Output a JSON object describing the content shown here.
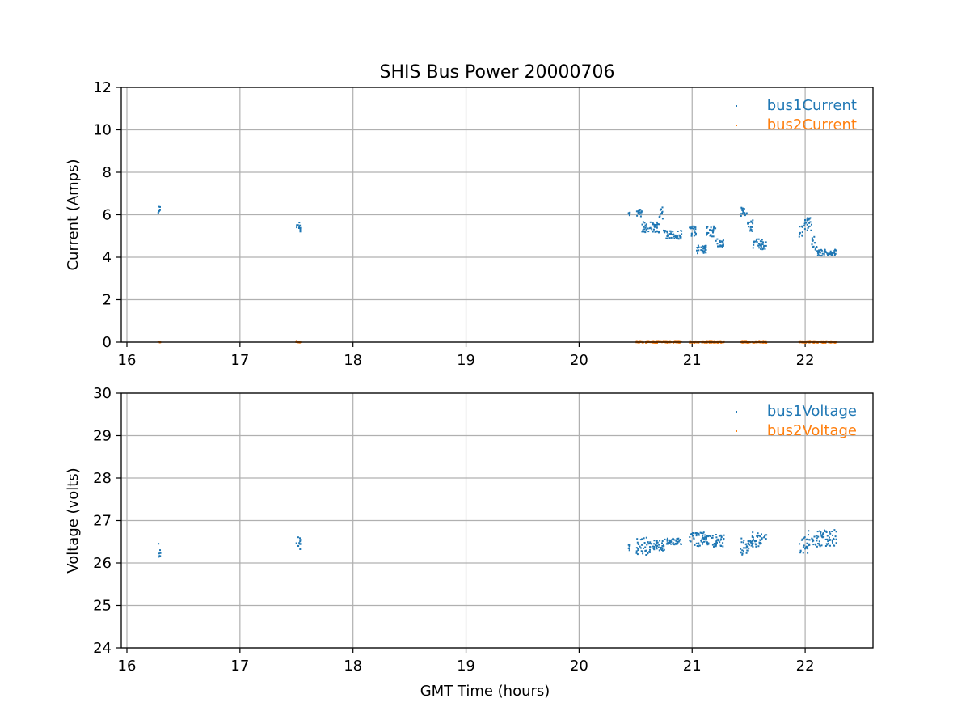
{
  "chart_data": [
    {
      "type": "scatter",
      "title": "SHIS Bus Power 20000706",
      "xlabel": "",
      "ylabel": "Current (Amps)",
      "xlim": [
        15.95,
        22.6
      ],
      "ylim": [
        0,
        12
      ],
      "xticks": [
        "16",
        "17",
        "18",
        "19",
        "20",
        "21",
        "22"
      ],
      "yticks": [
        "0",
        "2",
        "4",
        "6",
        "8",
        "10",
        "12"
      ],
      "grid": true,
      "legend": "top-right",
      "series": [
        {
          "name": "bus1Current",
          "color": "#1f77b4",
          "segments": [
            {
              "x": [
                16.27,
                16.29
              ],
              "y": [
                6.1,
                6.5
              ]
            },
            {
              "x": [
                17.49,
                17.53
              ],
              "y": [
                5.2,
                5.7
              ]
            },
            {
              "x": [
                20.43,
                20.44
              ],
              "y": [
                6.0,
                6.15
              ]
            },
            {
              "x": [
                20.5,
                20.55
              ],
              "y": [
                5.9,
                6.4
              ]
            },
            {
              "x": [
                20.55,
                20.7
              ],
              "y": [
                5.2,
                5.7
              ]
            },
            {
              "x": [
                20.7,
                20.74
              ],
              "y": [
                5.8,
                6.4
              ]
            },
            {
              "x": [
                20.74,
                20.9
              ],
              "y": [
                4.9,
                5.3
              ]
            },
            {
              "x": [
                20.97,
                21.03
              ],
              "y": [
                5.0,
                5.5
              ]
            },
            {
              "x": [
                21.03,
                21.12
              ],
              "y": [
                4.2,
                4.6
              ]
            },
            {
              "x": [
                21.12,
                21.2
              ],
              "y": [
                5.0,
                5.5
              ]
            },
            {
              "x": [
                21.2,
                21.28
              ],
              "y": [
                4.5,
                4.9
              ]
            },
            {
              "x": [
                21.42,
                21.48
              ],
              "y": [
                5.9,
                6.4
              ]
            },
            {
              "x": [
                21.48,
                21.53
              ],
              "y": [
                5.2,
                5.8
              ]
            },
            {
              "x": [
                21.53,
                21.65
              ],
              "y": [
                4.4,
                4.9
              ]
            },
            {
              "x": [
                21.94,
                21.97
              ],
              "y": [
                4.9,
                5.5
              ]
            },
            {
              "x": [
                21.98,
                22.05
              ],
              "y": [
                5.3,
                5.9
              ]
            },
            {
              "x": [
                22.05,
                22.1
              ],
              "y": [
                4.3,
                5.0
              ]
            },
            {
              "x": [
                22.1,
                22.27
              ],
              "y": [
                4.1,
                4.4
              ]
            }
          ]
        },
        {
          "name": "bus2Current",
          "color": "#ff7f0e",
          "segments": [
            {
              "x": [
                16.27,
                16.29
              ],
              "y": [
                0.0,
                0.1
              ]
            },
            {
              "x": [
                17.49,
                17.53
              ],
              "y": [
                0.0,
                0.1
              ]
            },
            {
              "x": [
                20.5,
                20.9
              ],
              "y": [
                0.0,
                0.1
              ]
            },
            {
              "x": [
                20.97,
                21.28
              ],
              "y": [
                0.0,
                0.1
              ]
            },
            {
              "x": [
                21.42,
                21.65
              ],
              "y": [
                0.0,
                0.1
              ]
            },
            {
              "x": [
                21.94,
                22.27
              ],
              "y": [
                0.0,
                0.1
              ]
            }
          ]
        }
      ]
    },
    {
      "type": "scatter",
      "title": "",
      "xlabel": "GMT Time (hours)",
      "ylabel": "Voltage (volts)",
      "xlim": [
        15.95,
        22.6
      ],
      "ylim": [
        24,
        30
      ],
      "xticks": [
        "16",
        "17",
        "18",
        "19",
        "20",
        "21",
        "22"
      ],
      "yticks": [
        "24",
        "25",
        "26",
        "27",
        "28",
        "29",
        "30"
      ],
      "grid": true,
      "legend": "top-right",
      "series": [
        {
          "name": "bus1Voltage",
          "color": "#1f77b4",
          "segments": [
            {
              "x": [
                16.27,
                16.29
              ],
              "y": [
                26.15,
                26.5
              ]
            },
            {
              "x": [
                17.49,
                17.53
              ],
              "y": [
                26.3,
                26.65
              ]
            },
            {
              "x": [
                20.43,
                20.44
              ],
              "y": [
                26.3,
                26.45
              ]
            },
            {
              "x": [
                20.5,
                20.62
              ],
              "y": [
                26.2,
                26.65
              ]
            },
            {
              "x": [
                20.62,
                20.75
              ],
              "y": [
                26.3,
                26.55
              ]
            },
            {
              "x": [
                20.75,
                20.9
              ],
              "y": [
                26.45,
                26.6
              ]
            },
            {
              "x": [
                20.97,
                21.1
              ],
              "y": [
                26.4,
                26.75
              ]
            },
            {
              "x": [
                21.1,
                21.28
              ],
              "y": [
                26.4,
                26.7
              ]
            },
            {
              "x": [
                21.42,
                21.52
              ],
              "y": [
                26.15,
                26.6
              ]
            },
            {
              "x": [
                21.52,
                21.65
              ],
              "y": [
                26.4,
                26.75
              ]
            },
            {
              "x": [
                21.94,
                22.02
              ],
              "y": [
                26.25,
                26.65
              ]
            },
            {
              "x": [
                22.02,
                22.27
              ],
              "y": [
                26.4,
                26.8
              ]
            }
          ]
        },
        {
          "name": "bus2Voltage",
          "color": "#ff7f0e",
          "segments": []
        }
      ]
    }
  ]
}
